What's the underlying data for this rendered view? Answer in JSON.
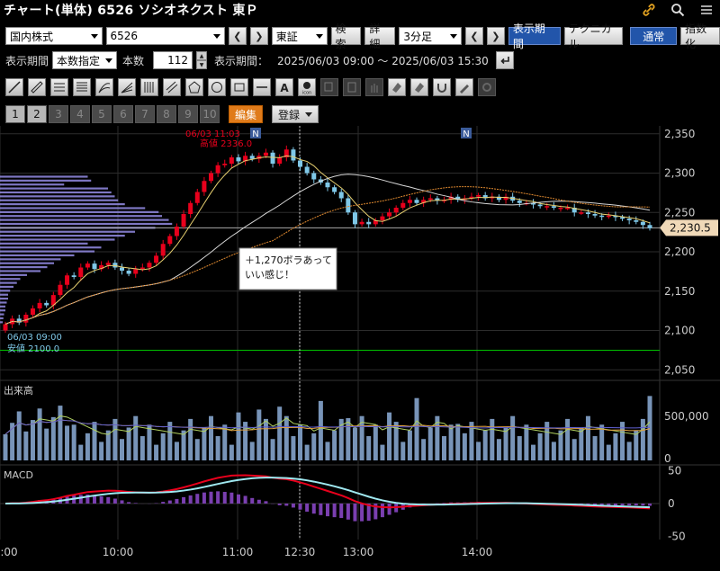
{
  "window": {
    "title": "チャート(単体) 6526 ソシオネクスト 東Ｐ"
  },
  "toolbar": {
    "market_select": "国内株式",
    "symbol_input": "6526",
    "exchange_select": "東証",
    "search_label": "検索",
    "detail_label": "詳細",
    "interval_select": "3分足",
    "display_period_label": "表示期間",
    "technical_label": "テクニカル",
    "normal_label": "通常",
    "index_label": "指数化"
  },
  "period": {
    "label": "表示期間",
    "mode_select": "本数指定",
    "count_label": "本数",
    "count_value": "112",
    "range_label": "表示期間：",
    "range_value": "2025/06/03 09:00 〜 2025/06/03 15:30"
  },
  "tools": [
    "line-tool",
    "ruler-tool",
    "hlines-tool",
    "hlines-dense-tool",
    "fan-tool",
    "fan2-tool",
    "vlines-tool",
    "channel-tool",
    "pentagon-tool",
    "circle-tool",
    "rect-tool",
    "hline-tool",
    "text-tool",
    "icon-tool",
    "copy-tool",
    "paste-tool",
    "hand-tool",
    "eraser-tool",
    "eraser2-tool",
    "magnet-tool",
    "pen-tool",
    "settings-tool"
  ],
  "pages": {
    "items": [
      "1",
      "2",
      "3",
      "4",
      "5",
      "6",
      "7",
      "8",
      "9",
      "10"
    ],
    "active": [
      "1",
      "2"
    ],
    "edit_label": "編集",
    "register_label": "登録"
  },
  "colors": {
    "up": "#e8001c",
    "down": "#7fc8e8",
    "volume": "#7894b8",
    "price_profile": "#8c84d8",
    "macd": "#e8001c",
    "signal": "#9fe8f0",
    "hist": "#7a3fb0",
    "low_line": "#00c000"
  },
  "chart_data": {
    "type": "candlestick",
    "price_axis": {
      "ticks": [
        "2,350",
        "2,300",
        "2,250",
        "2,200",
        "2,150",
        "2,100",
        "2,050"
      ],
      "range": [
        2040,
        2360
      ]
    },
    "time_axis": {
      "ticks": [
        ":00",
        "10:00",
        "11:00",
        "12:30",
        "13:00",
        "14:00"
      ]
    },
    "current_price": "2,230.5",
    "high_annotation": {
      "time": "06/03 11:03",
      "label": "高値 2336.0",
      "price": 2336
    },
    "low_annotation": {
      "time": "06/03 09:00",
      "label": "安値 2100.0",
      "price": 2100
    },
    "news_marker": "N",
    "comment": "＋1,270ボラあって\nいい感じ！",
    "volume": {
      "label": "出来高",
      "ticks": [
        "500,000",
        "0"
      ],
      "max": 600000
    },
    "macd": {
      "label": "MACD",
      "ticks": [
        "50",
        "0",
        "-50"
      ],
      "range": [
        -55,
        55
      ]
    },
    "closes": [
      2108,
      2115,
      2110,
      2120,
      2128,
      2135,
      2132,
      2145,
      2158,
      2170,
      2168,
      2180,
      2185,
      2178,
      2183,
      2186,
      2180,
      2176,
      2172,
      2178,
      2180,
      2186,
      2195,
      2210,
      2220,
      2232,
      2248,
      2262,
      2276,
      2290,
      2300,
      2310,
      2312,
      2320,
      2315,
      2322,
      2318,
      2322,
      2326,
      2312,
      2320,
      2330,
      2316,
      2308,
      2300,
      2292,
      2288,
      2282,
      2276,
      2268,
      2250,
      2235,
      2238,
      2235,
      2240,
      2245,
      2250,
      2256,
      2262,
      2266,
      2262,
      2266,
      2268,
      2265,
      2266,
      2270,
      2266,
      2268,
      2270,
      2272,
      2268,
      2270,
      2266,
      2270,
      2265,
      2262,
      2262,
      2260,
      2258,
      2258,
      2256,
      2256,
      2256,
      2250,
      2250,
      2248,
      2246,
      2245,
      2246,
      2244,
      2242,
      2240,
      2238,
      2234,
      2230
    ]
  }
}
